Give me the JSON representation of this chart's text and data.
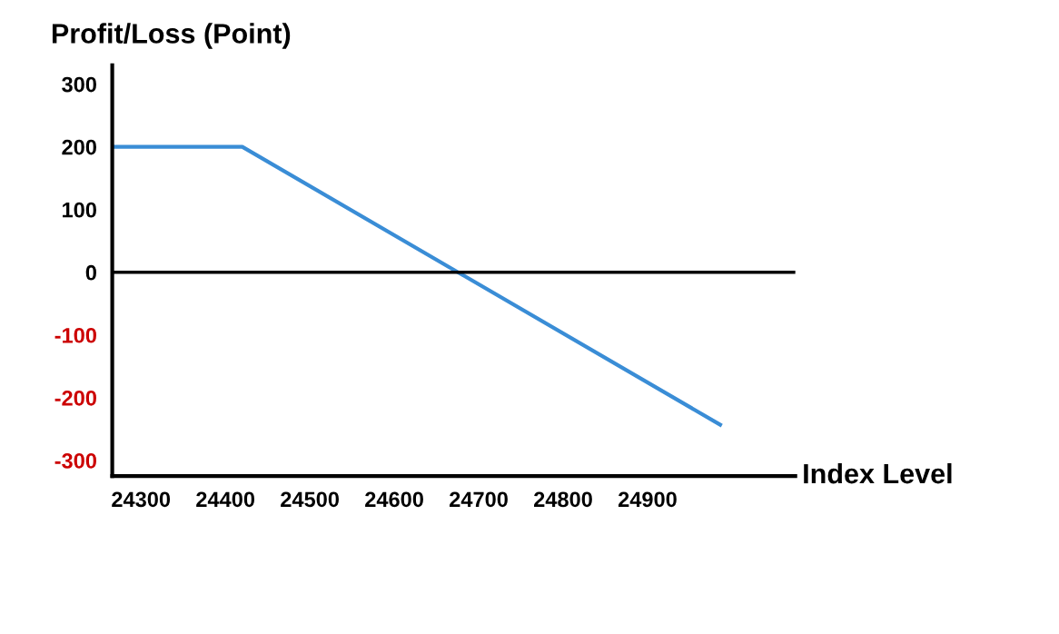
{
  "chart_data": {
    "type": "line",
    "ylabel": "Profit/Loss (Point)",
    "xlabel": "Index Level",
    "x": [
      24266,
      24420,
      24986
    ],
    "series": [
      {
        "color": "#3a8dd6",
        "values": [
          200,
          200,
          -243
        ]
      }
    ],
    "xlim": [
      24266,
      25075
    ],
    "ylim": [
      -325,
      330
    ],
    "xticks": [
      24300,
      24400,
      24500,
      24600,
      24700,
      24800,
      24900
    ],
    "yticks": [
      300,
      200,
      100,
      0,
      -100,
      -200,
      -300
    ],
    "ref_lines": [
      {
        "axis": "y",
        "value": 0,
        "color": "#000000"
      }
    ],
    "grid": false,
    "legend": false,
    "marker": "none",
    "line_style": "solid"
  }
}
